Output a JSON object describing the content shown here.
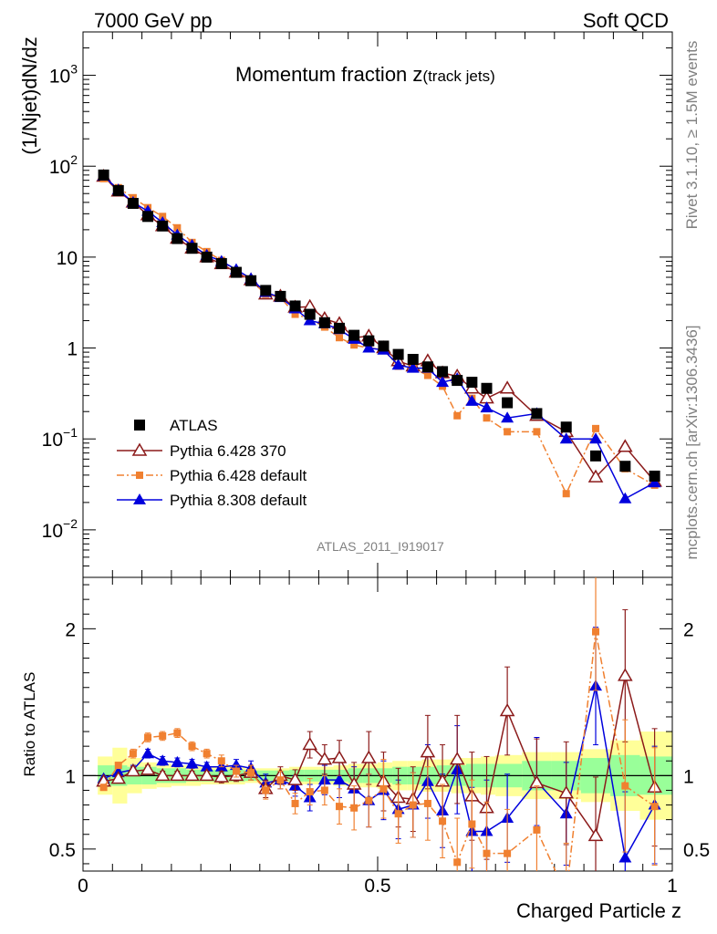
{
  "header": {
    "left": "7000 GeV pp",
    "right": "Soft QCD",
    "side_top": "Rivet 3.1.10, ≥ 1.5M events",
    "side_bottom": "mcplots.cern.ch [arXiv:1306.3436]"
  },
  "chart_data": [
    {
      "type": "line",
      "panel": "main",
      "title_main": "Momentum fraction z",
      "title_sub": "(track jets)",
      "analysis": "ATLAS_2011_I919017",
      "ylabel": "(1/Njet)dN/dz",
      "xlabel": "Charged Particle z",
      "xlim": [
        0,
        1
      ],
      "ylim": [
        0.003,
        3000
      ],
      "yscale": "log",
      "x_ticks": [
        "0",
        "0.5",
        "1"
      ],
      "y_ticks": [
        {
          "value": 0.01,
          "base": "10",
          "exp": "−2"
        },
        {
          "value": 0.1,
          "base": "10",
          "exp": "−1"
        },
        {
          "value": 1,
          "base": "1",
          "exp": ""
        },
        {
          "value": 10,
          "base": "10",
          "exp": ""
        },
        {
          "value": 100,
          "base": "10",
          "exp": "2"
        },
        {
          "value": 1000,
          "base": "10",
          "exp": "3"
        }
      ],
      "legend_position": "lower-left",
      "x": [
        0.035,
        0.06,
        0.085,
        0.11,
        0.135,
        0.16,
        0.185,
        0.21,
        0.235,
        0.26,
        0.285,
        0.31,
        0.335,
        0.36,
        0.385,
        0.41,
        0.435,
        0.46,
        0.485,
        0.51,
        0.535,
        0.56,
        0.585,
        0.61,
        0.635,
        0.66,
        0.685,
        0.72,
        0.77,
        0.82,
        0.87,
        0.92,
        0.97
      ],
      "series": [
        {
          "name": "ATLAS",
          "color": "#000000",
          "marker": "square",
          "values": [
            80,
            54,
            39,
            28,
            22,
            16,
            12.5,
            10,
            8.5,
            6.8,
            5.5,
            4.3,
            3.7,
            2.9,
            2.35,
            1.9,
            1.65,
            1.38,
            1.2,
            1.05,
            0.85,
            0.75,
            0.62,
            0.55,
            0.44,
            0.42,
            0.36,
            0.25,
            0.19,
            0.135,
            0.065,
            0.05,
            0.039
          ]
        },
        {
          "name": "Pythia 6.428 370",
          "color": "#8b1a1a",
          "marker": "triangle-open",
          "dash": "",
          "values": [
            77,
            53,
            40,
            29,
            22,
            16,
            12.5,
            10,
            8.4,
            6.8,
            5.6,
            3.9,
            3.7,
            2.8,
            2.85,
            2.1,
            1.85,
            1.3,
            1.35,
            1.0,
            0.72,
            0.63,
            0.72,
            0.53,
            0.49,
            0.36,
            0.28,
            0.36,
            0.18,
            0.12,
            0.038,
            0.082,
            0.034
          ]
        },
        {
          "name": "Pythia 6.428 default",
          "color": "#f08030",
          "marker": "square-small",
          "dash": "8,3,2,3",
          "values": [
            73,
            58,
            45,
            35,
            28,
            21,
            14.5,
            11.5,
            9.2,
            7.0,
            5.6,
            3.9,
            3.6,
            2.35,
            2.1,
            1.7,
            1.3,
            1.08,
            1.0,
            0.96,
            0.63,
            0.6,
            0.5,
            0.38,
            0.18,
            0.28,
            0.17,
            0.12,
            0.12,
            0.025,
            0.13,
            0.047,
            0.031
          ]
        },
        {
          "name": "Pythia 8.308 default",
          "color": "#0000dd",
          "marker": "triangle",
          "dash": "",
          "values": [
            78,
            55,
            40,
            32,
            24,
            17.5,
            13.5,
            10.5,
            9.0,
            7.3,
            5.8,
            4.1,
            3.6,
            2.7,
            2.0,
            1.85,
            1.6,
            1.25,
            1.0,
            0.95,
            0.65,
            0.6,
            0.6,
            0.42,
            0.46,
            0.26,
            0.22,
            0.17,
            0.19,
            0.1,
            0.1,
            0.022,
            0.033
          ]
        }
      ]
    },
    {
      "type": "line",
      "panel": "ratio",
      "ylabel": "Ratio to ATLAS",
      "ylim": [
        0.35,
        2.35
      ],
      "y_ticks": [
        {
          "value": 0.5,
          "label": "0.5"
        },
        {
          "value": 1,
          "label": "1"
        },
        {
          "value": 2,
          "label": "2"
        }
      ],
      "band_colors": {
        "inner": "#99ff99",
        "outer": "#ffff99"
      },
      "band_x": [
        0.025,
        0.05,
        0.075,
        0.1,
        0.125,
        0.15,
        0.175,
        0.2,
        0.225,
        0.25,
        0.275,
        0.3,
        0.325,
        0.35,
        0.375,
        0.4,
        0.425,
        0.45,
        0.475,
        0.5,
        0.525,
        0.55,
        0.575,
        0.6,
        0.625,
        0.65,
        0.675,
        0.7,
        0.745,
        0.795,
        0.845,
        0.895,
        0.945,
        1.0
      ],
      "band_inner": [
        0.07,
        0.07,
        0.06,
        0.06,
        0.05,
        0.05,
        0.04,
        0.04,
        0.04,
        0.04,
        0.035,
        0.035,
        0.035,
        0.04,
        0.04,
        0.04,
        0.04,
        0.05,
        0.05,
        0.05,
        0.06,
        0.06,
        0.06,
        0.07,
        0.07,
        0.08,
        0.08,
        0.08,
        0.1,
        0.1,
        0.12,
        0.14,
        0.13
      ],
      "band_outer": [
        0.13,
        0.19,
        0.12,
        0.09,
        0.08,
        0.07,
        0.07,
        0.06,
        0.06,
        0.06,
        0.05,
        0.05,
        0.05,
        0.06,
        0.06,
        0.06,
        0.07,
        0.08,
        0.08,
        0.09,
        0.1,
        0.1,
        0.11,
        0.11,
        0.12,
        0.12,
        0.13,
        0.14,
        0.16,
        0.16,
        0.18,
        0.24,
        0.3
      ],
      "series": [
        {
          "name": "Pythia 6.428 370",
          "values": [
            0.96,
            0.98,
            1.03,
            1.04,
            1.0,
            1.0,
            1.0,
            1.0,
            0.99,
            1.0,
            1.02,
            0.91,
            1.0,
            0.97,
            1.21,
            1.11,
            1.12,
            0.94,
            1.12,
            0.96,
            0.85,
            0.84,
            1.16,
            0.96,
            1.11,
            0.86,
            0.78,
            1.44,
            0.95,
            0.88,
            0.59,
            1.68,
            0.92
          ],
          "err": [
            0.02,
            0.02,
            0.03,
            0.03,
            0.03,
            0.03,
            0.03,
            0.03,
            0.04,
            0.04,
            0.05,
            0.06,
            0.06,
            0.07,
            0.09,
            0.1,
            0.12,
            0.15,
            0.18,
            0.2,
            0.2,
            0.22,
            0.25,
            0.25,
            0.3,
            0.3,
            0.35,
            0.3,
            0.3,
            0.35,
            0.4,
            0.45,
            0.4
          ]
        },
        {
          "name": "Pythia 6.428 default",
          "values": [
            0.92,
            1.07,
            1.15,
            1.26,
            1.27,
            1.29,
            1.2,
            1.15,
            1.1,
            1.03,
            1.02,
            0.9,
            0.97,
            0.81,
            0.89,
            0.9,
            0.79,
            0.78,
            0.83,
            0.91,
            0.74,
            0.8,
            0.81,
            0.69,
            0.41,
            0.67,
            0.47,
            0.47,
            0.63,
            0.19,
            1.98,
            0.93,
            0.79
          ],
          "err": [
            0.02,
            0.02,
            0.03,
            0.03,
            0.03,
            0.03,
            0.03,
            0.03,
            0.04,
            0.04,
            0.05,
            0.06,
            0.06,
            0.07,
            0.09,
            0.1,
            0.12,
            0.15,
            0.18,
            0.2,
            0.2,
            0.22,
            0.25,
            0.25,
            0.3,
            0.3,
            0.35,
            0.3,
            0.3,
            0.35,
            0.4,
            0.45,
            0.4
          ]
        },
        {
          "name": "Pythia 8.308 default",
          "values": [
            0.98,
            1.02,
            1.04,
            1.15,
            1.1,
            1.09,
            1.08,
            1.06,
            1.06,
            1.07,
            1.05,
            0.95,
            0.97,
            0.93,
            0.85,
            0.97,
            0.97,
            0.91,
            0.83,
            0.9,
            0.77,
            0.8,
            0.96,
            0.76,
            1.04,
            0.62,
            0.62,
            0.71,
            0.96,
            0.74,
            1.61,
            0.44,
            0.8
          ],
          "err": [
            0.02,
            0.02,
            0.03,
            0.03,
            0.03,
            0.03,
            0.03,
            0.03,
            0.04,
            0.04,
            0.05,
            0.06,
            0.06,
            0.07,
            0.09,
            0.1,
            0.12,
            0.15,
            0.18,
            0.2,
            0.2,
            0.22,
            0.25,
            0.25,
            0.3,
            0.3,
            0.35,
            0.3,
            0.3,
            0.35,
            0.4,
            0.45,
            0.4
          ]
        }
      ]
    }
  ]
}
